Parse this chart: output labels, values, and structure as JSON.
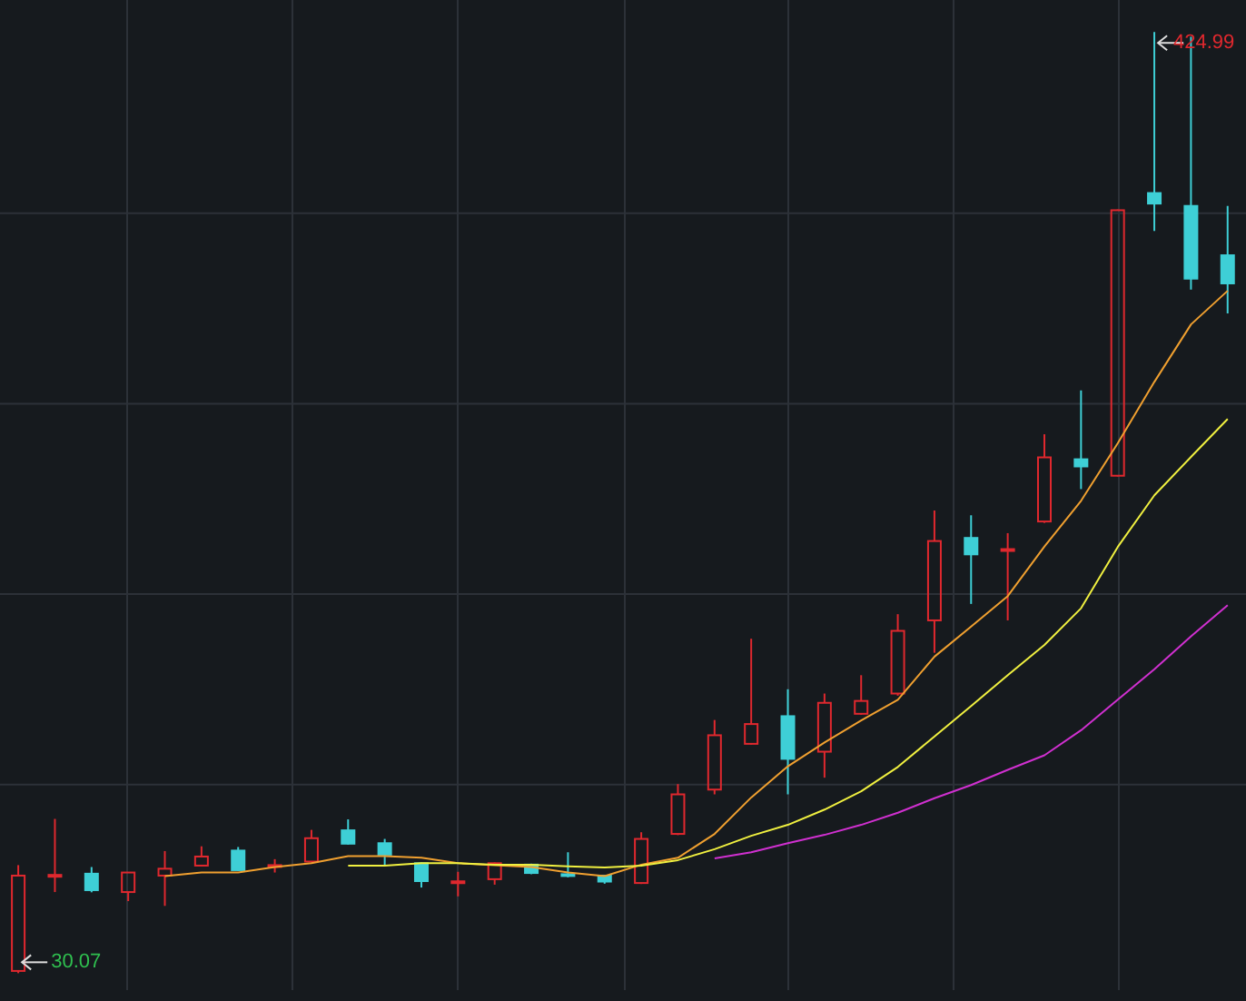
{
  "chart_data": {
    "type": "candlestick",
    "categories": [
      null,
      null,
      null,
      null,
      null,
      null,
      null,
      null,
      null,
      null,
      null,
      null,
      null,
      null,
      null,
      null,
      null,
      null,
      null,
      null,
      null,
      null,
      null,
      null,
      null,
      null,
      null,
      null,
      null,
      null,
      null,
      null,
      null,
      null
    ],
    "ohlc": [
      [
        31,
        75.4,
        30.07,
        71.0
      ],
      [
        71.0,
        94.8,
        64.1,
        71.3
      ],
      [
        71.8,
        74.6,
        64.0,
        64.9
      ],
      [
        64.1,
        72.5,
        60.3,
        72.3
      ],
      [
        71.0,
        81.3,
        58.3,
        73.9
      ],
      [
        75.2,
        83.3,
        75.0,
        79.0
      ],
      [
        81.5,
        83.0,
        73.0,
        73.3
      ],
      [
        75.0,
        77.9,
        72.3,
        75.4
      ],
      [
        76.9,
        90.2,
        76.5,
        86.7
      ],
      [
        90.0,
        94.6,
        84.0,
        84.4
      ],
      [
        84.6,
        86.4,
        75.2,
        79.8
      ],
      [
        76.2,
        76.5,
        66.0,
        68.7
      ],
      [
        68.3,
        72.6,
        62.3,
        68.6
      ],
      [
        69.5,
        76.5,
        67.2,
        76.2
      ],
      [
        75.6,
        76.0,
        71.6,
        72.1
      ],
      [
        71.6,
        80.8,
        70.3,
        70.9
      ],
      [
        71.0,
        71.3,
        67.6,
        68.5
      ],
      [
        67.9,
        89.2,
        67.5,
        86.4
      ],
      [
        88.5,
        109.4,
        88.0,
        105.1
      ],
      [
        107.1,
        136.3,
        105.1,
        129.9
      ],
      [
        126.3,
        170.4,
        126.0,
        134.6
      ],
      [
        137.9,
        149.2,
        105.1,
        120.0
      ],
      [
        123.0,
        147.4,
        112.1,
        143.5
      ],
      [
        138.9,
        155.1,
        138.5,
        144.3
      ],
      [
        147.4,
        180.7,
        146.5,
        173.7
      ],
      [
        178.1,
        224.2,
        164.5,
        211.4
      ],
      [
        212.7,
        222.2,
        185.0,
        205.8
      ],
      [
        207.5,
        214.7,
        178.1,
        208.0
      ],
      [
        219.6,
        256.2,
        219.0,
        246.5
      ],
      [
        245.7,
        274.6,
        233.2,
        242.7
      ],
      [
        238.8,
        350.5,
        238.5,
        350.2
      ],
      [
        357.4,
        424.99,
        341.5,
        353.0
      ],
      [
        352.0,
        423.0,
        316.9,
        321.5
      ],
      [
        331.3,
        352.0,
        306.9,
        319.5
      ]
    ],
    "colors": [
      "#e0282e",
      "#e0282e",
      "#3ecfd6",
      "#e0282e",
      "#e0282e",
      "#e0282e",
      "#3ecfd6",
      "#e0282e",
      "#e0282e",
      "#3ecfd6",
      "#3ecfd6",
      "#3ecfd6",
      "#e0282e",
      "#e0282e",
      "#3ecfd6",
      "#3ecfd6",
      "#3ecfd6",
      "#e0282e",
      "#e0282e",
      "#e0282e",
      "#e0282e",
      "#3ecfd6",
      "#e0282e",
      "#e0282e",
      "#e0282e",
      "#e0282e",
      "#3ecfd6",
      "#e0282e",
      "#e0282e",
      "#3ecfd6",
      "#e0282e",
      "#3ecfd6",
      "#3ecfd6",
      "#3ecfd6"
    ],
    "series": [
      {
        "type": "line",
        "color": "#f0a030",
        "values": [
          null,
          null,
          null,
          null,
          70.8,
          72.3,
          72.3,
          74.6,
          76.2,
          79.2,
          79.2,
          78.5,
          76.2,
          75.4,
          74.6,
          72.3,
          70.8,
          75.6,
          78.5,
          88.5,
          103.8,
          116.9,
          126.9,
          136.1,
          144.8,
          162.9,
          175.5,
          188.3,
          209.1,
          228.3,
          252.4,
          278.2,
          302.3,
          316.4
        ]
      },
      {
        "type": "line",
        "color": "#f0f040",
        "values": [
          null,
          null,
          null,
          null,
          null,
          null,
          null,
          null,
          null,
          75.2,
          75.2,
          76.2,
          76.2,
          75.6,
          75.6,
          74.9,
          74.4,
          75.2,
          77.5,
          82.1,
          87.7,
          92.3,
          98.7,
          106.4,
          116.6,
          129.4,
          142.2,
          155.1,
          167.8,
          183.2,
          208.9,
          230.6,
          246.7,
          262.6
        ]
      },
      {
        "type": "line",
        "color": "#d030d0",
        "values": [
          null,
          null,
          null,
          null,
          null,
          null,
          null,
          null,
          null,
          null,
          null,
          null,
          null,
          null,
          null,
          null,
          null,
          null,
          null,
          78.2,
          80.8,
          84.6,
          88.1,
          92.3,
          97.4,
          103.5,
          109.0,
          115.4,
          121.5,
          132.0,
          144.8,
          157.6,
          171.4,
          184.5
        ]
      }
    ],
    "annotations": [
      "424.99",
      "30.07"
    ],
    "yticks": [
      {
        "value": 109.2,
        "label": null
      },
      {
        "value": 189.1,
        "label": null
      },
      {
        "value": 269.0,
        "label": null
      },
      {
        "value": 348.9,
        "label": null
      }
    ],
    "grid": true,
    "marker": "none"
  }
}
